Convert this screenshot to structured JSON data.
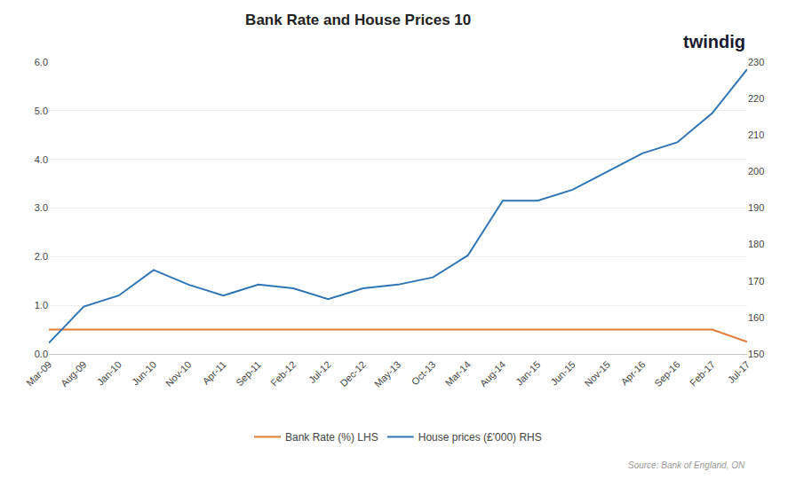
{
  "chart_data": {
    "type": "line",
    "title": "Bank Rate and House Prices 10",
    "annotations": [
      "twindig",
      "Source: Bank of England, ON"
    ],
    "categories": [
      "Mar-09",
      "Aug-09",
      "Jan-10",
      "Jun-10",
      "Nov-10",
      "Apr-11",
      "Sep-11",
      "Feb-12",
      "Jul-12",
      "Dec-12",
      "May-13",
      "Oct-13",
      "Mar-14",
      "Aug-14",
      "Jan-15",
      "Jun-15",
      "Nov-15",
      "Apr-16",
      "Sep-16",
      "Feb-17",
      "Jul-17"
    ],
    "series": [
      {
        "name": "Bank Rate (%) LHS",
        "color": "#e07b39",
        "values": [
          0.5,
          0.5,
          0.5,
          0.5,
          0.5,
          0.5,
          0.5,
          0.5,
          0.5,
          0.5,
          0.5,
          0.5,
          0.5,
          0.5,
          0.5,
          0.5,
          0.5,
          0.5,
          0.5,
          0.5,
          0.25
        ]
      },
      {
        "name": "House prices (£'000) RHS",
        "color": "#2e75b6",
        "axis": "y2",
        "values": [
          153,
          163,
          166,
          173,
          169,
          166,
          169,
          168,
          165,
          168,
          169,
          171,
          177,
          192,
          192,
          195,
          200,
          205,
          208,
          216,
          228
        ]
      }
    ],
    "ylim": [
      0.0,
      6.0
    ],
    "yticks": [
      {
        "value": 0,
        "label": "0.0"
      },
      {
        "value": 1,
        "label": "1.0"
      },
      {
        "value": 2,
        "label": "2.0"
      },
      {
        "value": 3,
        "label": "3.0"
      },
      {
        "value": 4,
        "label": "4.0"
      },
      {
        "value": 5,
        "label": "5.0"
      },
      {
        "value": 6,
        "label": "6.0"
      }
    ],
    "y2lim": [
      150,
      230
    ],
    "y2ticks": [
      150,
      160,
      170,
      180,
      190,
      200,
      210,
      220,
      230
    ],
    "grid": true,
    "legend": "bottom"
  }
}
